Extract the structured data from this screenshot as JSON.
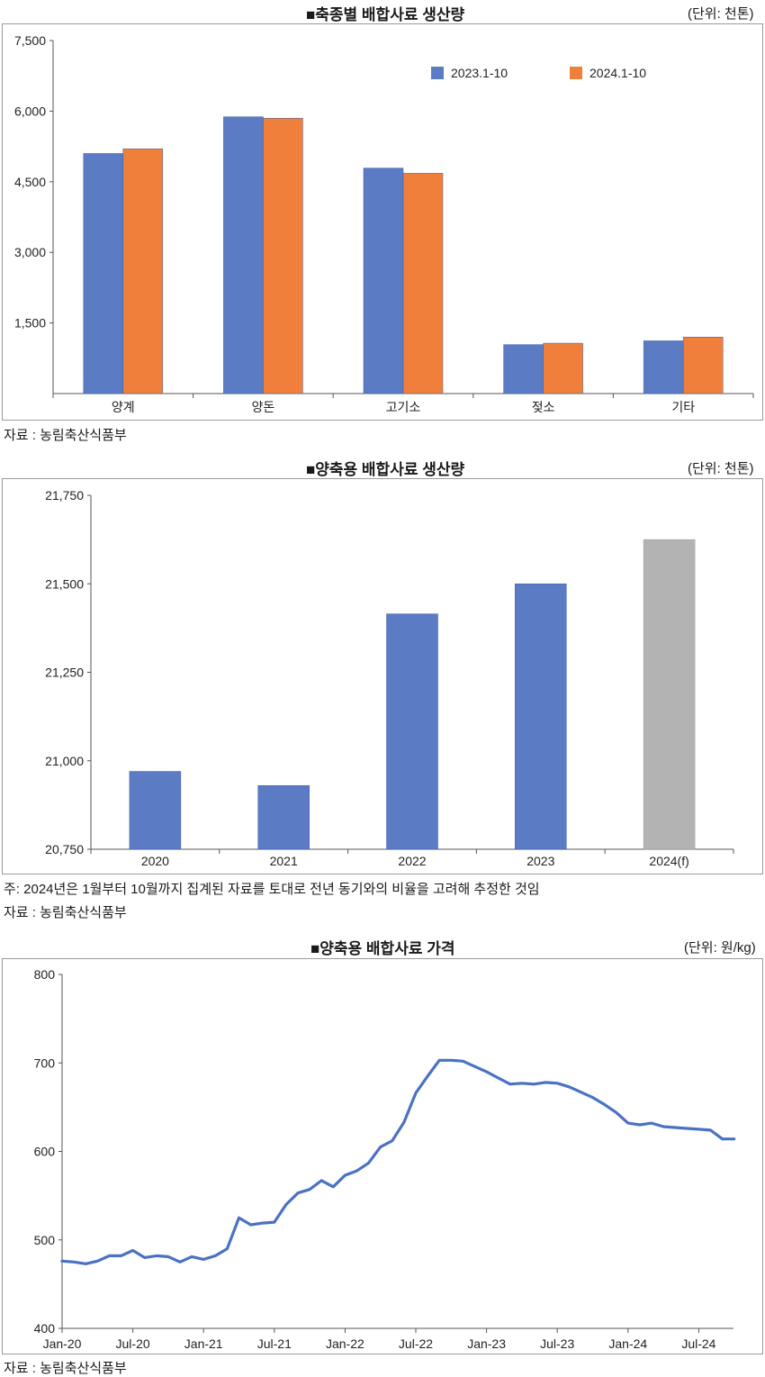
{
  "charts": [
    {
      "title": "■축종별 배합사료 생산량",
      "unit": "(단위: 천톤)",
      "source": "자료 : 농림축산식품부",
      "note": ""
    },
    {
      "title": "■양축용 배합사료 생산량",
      "unit": "(단위: 천톤)",
      "source": "자료 : 농림축산식품부",
      "note": "주: 2024년은 1월부터 10월까지 집계된 자료를 토대로 전년 동기와의 비율을 고려해 추정한 것임"
    },
    {
      "title": "■양축용 배합사료 가격",
      "unit": "(단위: 원/kg)",
      "source": "자료 : 농림축산식품부",
      "note": ""
    }
  ],
  "chart_data": [
    {
      "type": "bar",
      "title": "■축종별 배합사료 생산량",
      "categories": [
        "양계",
        "양돈",
        "고기소",
        "젖소",
        "기타"
      ],
      "series": [
        {
          "name": "2023.1-10",
          "color": "#5b7cc4",
          "values": [
            5100,
            5880,
            4790,
            1040,
            1120
          ]
        },
        {
          "name": "2024.1-10",
          "color": "#ef7f3a",
          "values": [
            5200,
            5850,
            4680,
            1070,
            1200
          ]
        }
      ],
      "ylim": [
        0,
        7500
      ],
      "yticks": [
        "1,500",
        "3,000",
        "4,500",
        "6,000",
        "7,500"
      ],
      "ytick_values": [
        1500,
        3000,
        4500,
        6000,
        7500
      ],
      "legend_position": "top-right",
      "grid": false
    },
    {
      "type": "bar",
      "title": "■양축용 배합사료 생산량",
      "categories": [
        "2020",
        "2021",
        "2022",
        "2023",
        "2024(f)"
      ],
      "values": [
        20970,
        20930,
        21415,
        21500,
        21625
      ],
      "colors": [
        "#5b7cc4",
        "#5b7cc4",
        "#5b7cc4",
        "#5b7cc4",
        "#b3b3b3"
      ],
      "ylim": [
        20750,
        21750
      ],
      "yticks": [
        "20,750",
        "21,000",
        "21,250",
        "21,500",
        "21,750"
      ],
      "ytick_values": [
        20750,
        21000,
        21250,
        21500,
        21750
      ],
      "grid": false
    },
    {
      "type": "line",
      "title": "■양축용 배합사료 가격",
      "color": "#4a72c4",
      "x_labels": [
        "Jan-20",
        "Jul-20",
        "Jan-21",
        "Jul-21",
        "Jan-22",
        "Jul-22",
        "Jan-23",
        "Jul-23",
        "Jan-24",
        "Jul-24"
      ],
      "values": [
        476,
        475,
        473,
        476,
        482,
        482,
        488,
        480,
        482,
        481,
        475,
        481,
        478,
        482,
        490,
        525,
        517,
        519,
        520,
        540,
        553,
        557,
        567,
        560,
        573,
        578,
        587,
        605,
        612,
        633,
        666,
        685,
        703,
        703,
        702,
        696,
        690,
        683,
        676,
        677,
        676,
        678,
        677,
        673,
        667,
        661,
        653,
        644,
        632,
        630,
        632,
        628,
        627,
        626,
        625,
        624,
        614,
        614
      ],
      "ylim": [
        400,
        800
      ],
      "yticks": [
        "400",
        "500",
        "600",
        "700",
        "800"
      ],
      "ytick_values": [
        400,
        500,
        600,
        700,
        800
      ],
      "grid": false
    }
  ]
}
